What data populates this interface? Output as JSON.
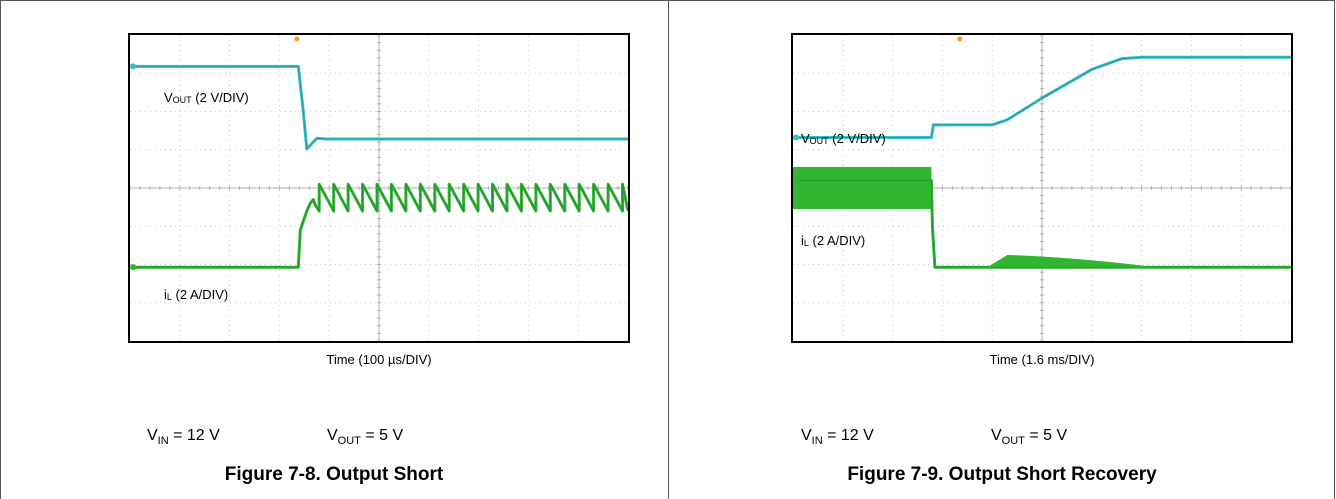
{
  "chart_data": [
    {
      "type": "line",
      "figure_title": "Figure 7-8. Output Short",
      "xlabel": "Time (100 µs/DIV)",
      "conditions": {
        "vin": {
          "main": "V",
          "sub": "IN",
          "rest": " = 12 V"
        },
        "vout": {
          "main": "V",
          "sub": "OUT",
          "rest": " = 5 V"
        }
      },
      "divisions": {
        "x": 10,
        "y": 8
      },
      "grid": true,
      "series": [
        {
          "label_main": "V",
          "label_sub": "OUT",
          "label_rest": " (2 V/DIV)",
          "color": "#36bfc9",
          "x": [
            0,
            3.38,
            3.48,
            3.55,
            3.75,
            3.95,
            10
          ],
          "y": [
            7.18,
            7.18,
            6.0,
            5.02,
            5.3,
            5.28,
            5.28
          ]
        },
        {
          "label_main": "i",
          "label_sub": "L",
          "label_rest": " (2 A/DIV)",
          "color": "#2fb52f",
          "x": [
            0,
            3.38,
            3.42,
            3.55,
            3.62,
            3.68,
            3.72,
            3.8
          ],
          "y": [
            1.93,
            1.93,
            2.9,
            3.4,
            3.6,
            3.7,
            3.55,
            3.4
          ],
          "sawtooth": {
            "start": 3.8,
            "end": 10,
            "period": 0.29,
            "high": 4.1,
            "low": 3.4
          }
        }
      ]
    },
    {
      "type": "line",
      "figure_title": "Figure 7-9. Output Short Recovery",
      "xlabel": "Time (1.6 ms/DIV)",
      "conditions": {
        "vin": {
          "main": "V",
          "sub": "IN",
          "rest": " = 12 V"
        },
        "vout": {
          "main": "V",
          "sub": "OUT",
          "rest": " = 5 V"
        }
      },
      "divisions": {
        "x": 10,
        "y": 8
      },
      "grid": true,
      "series": [
        {
          "label_main": "V",
          "label_sub": "OUT",
          "label_rest": " (2 V/DIV)",
          "color": "#36bfc9",
          "x": [
            0,
            2.78,
            2.82,
            4.0,
            4.3,
            5.0,
            6.0,
            6.6,
            7.0,
            10
          ],
          "y": [
            5.32,
            5.32,
            5.65,
            5.65,
            5.78,
            6.35,
            7.1,
            7.38,
            7.42,
            7.42
          ],
          "trend": "monotonic soft-start recovery"
        },
        {
          "label_main": "i",
          "label_sub": "L",
          "label_rest": " (2 A/DIV)",
          "color": "#2fb52f",
          "x": [
            0,
            2.78,
            2.8,
            2.85,
            10
          ],
          "y": [
            4.2,
            4.2,
            3.0,
            1.93,
            1.93
          ],
          "ripple_band": {
            "start": 0,
            "end": 2.78,
            "low": 3.45,
            "high": 4.55
          },
          "hump": {
            "start": 3.9,
            "end": 7.3,
            "peak": 2.25
          }
        }
      ]
    }
  ]
}
